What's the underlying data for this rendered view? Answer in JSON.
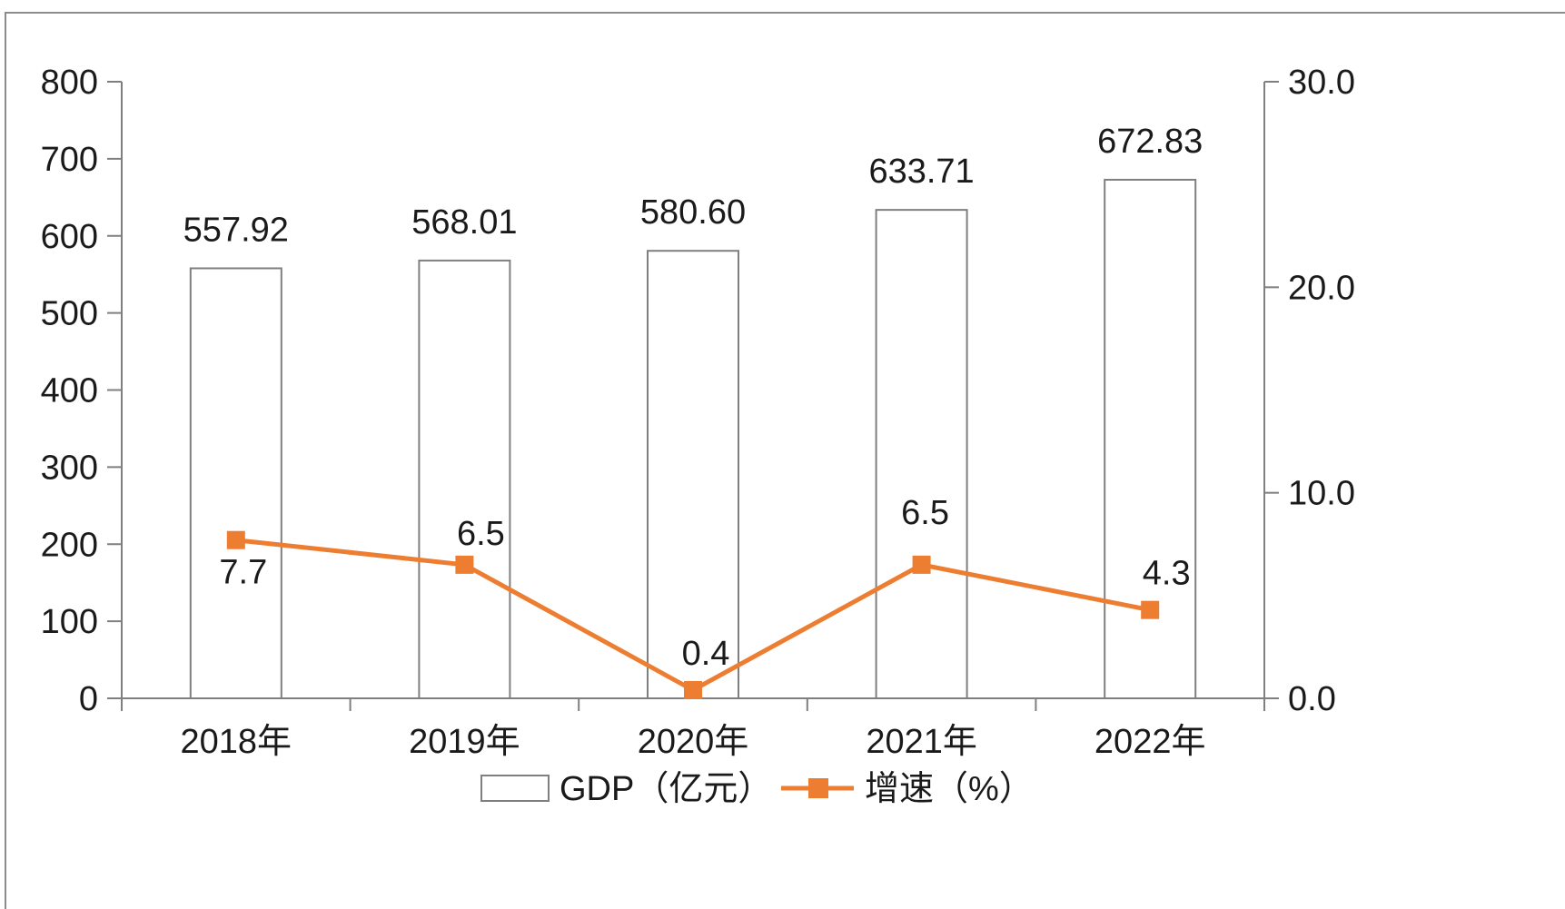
{
  "chart_data": {
    "type": "bar",
    "categories": [
      "2018年",
      "2019年",
      "2020年",
      "2021年",
      "2022年"
    ],
    "series": [
      {
        "name": "GDP（亿元）",
        "type": "bar",
        "axis": "left",
        "values": [
          557.92,
          568.01,
          580.6,
          633.71,
          672.83
        ],
        "labels": [
          "557.92",
          "568.01",
          "580.60",
          "633.71",
          "672.83"
        ]
      },
      {
        "name": "增速（%）",
        "type": "line",
        "axis": "right",
        "values": [
          7.7,
          6.5,
          0.4,
          6.5,
          4.3
        ],
        "labels": [
          "7.7",
          "6.5",
          "0.4",
          "6.5",
          "4.3"
        ]
      }
    ],
    "y_left": {
      "min": 0,
      "max": 800,
      "ticks": [
        0,
        100,
        200,
        300,
        400,
        500,
        600,
        700,
        800
      ]
    },
    "y_right": {
      "min": 0,
      "max": 30,
      "ticks": [
        "0.0",
        "10.0",
        "20.0",
        "30.0"
      ]
    },
    "legend": "bottom",
    "grid": false,
    "colors": {
      "bar_fill": "#ffffff",
      "bar_stroke": "#7f7f7f",
      "line": "#ed7d31",
      "axis": "#7f7f7f",
      "frame": "#8c8c8c"
    }
  }
}
